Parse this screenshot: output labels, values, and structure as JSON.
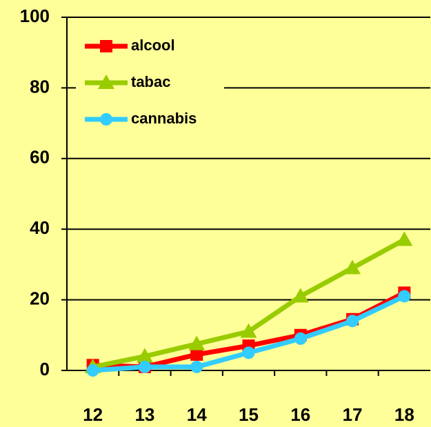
{
  "chart_data": {
    "type": "line",
    "categories": [
      "12",
      "13",
      "14",
      "15",
      "16",
      "17",
      "18"
    ],
    "series": [
      {
        "name": "alcool",
        "color": "#ff0000",
        "marker": "square",
        "values": [
          1.5,
          1,
          4.5,
          7,
          10,
          14.5,
          22
        ]
      },
      {
        "name": "tabac",
        "color": "#99cc00",
        "marker": "triangle",
        "values": [
          1,
          4,
          7.5,
          11,
          21,
          29,
          37
        ]
      },
      {
        "name": "cannabis",
        "color": "#33ccff",
        "marker": "circle",
        "values": [
          0,
          1,
          1,
          5,
          9,
          14,
          21
        ]
      }
    ],
    "ylim": [
      0,
      100
    ],
    "yticks": [
      0,
      20,
      40,
      60,
      80,
      100
    ],
    "grid": true,
    "legend": "upper left"
  }
}
